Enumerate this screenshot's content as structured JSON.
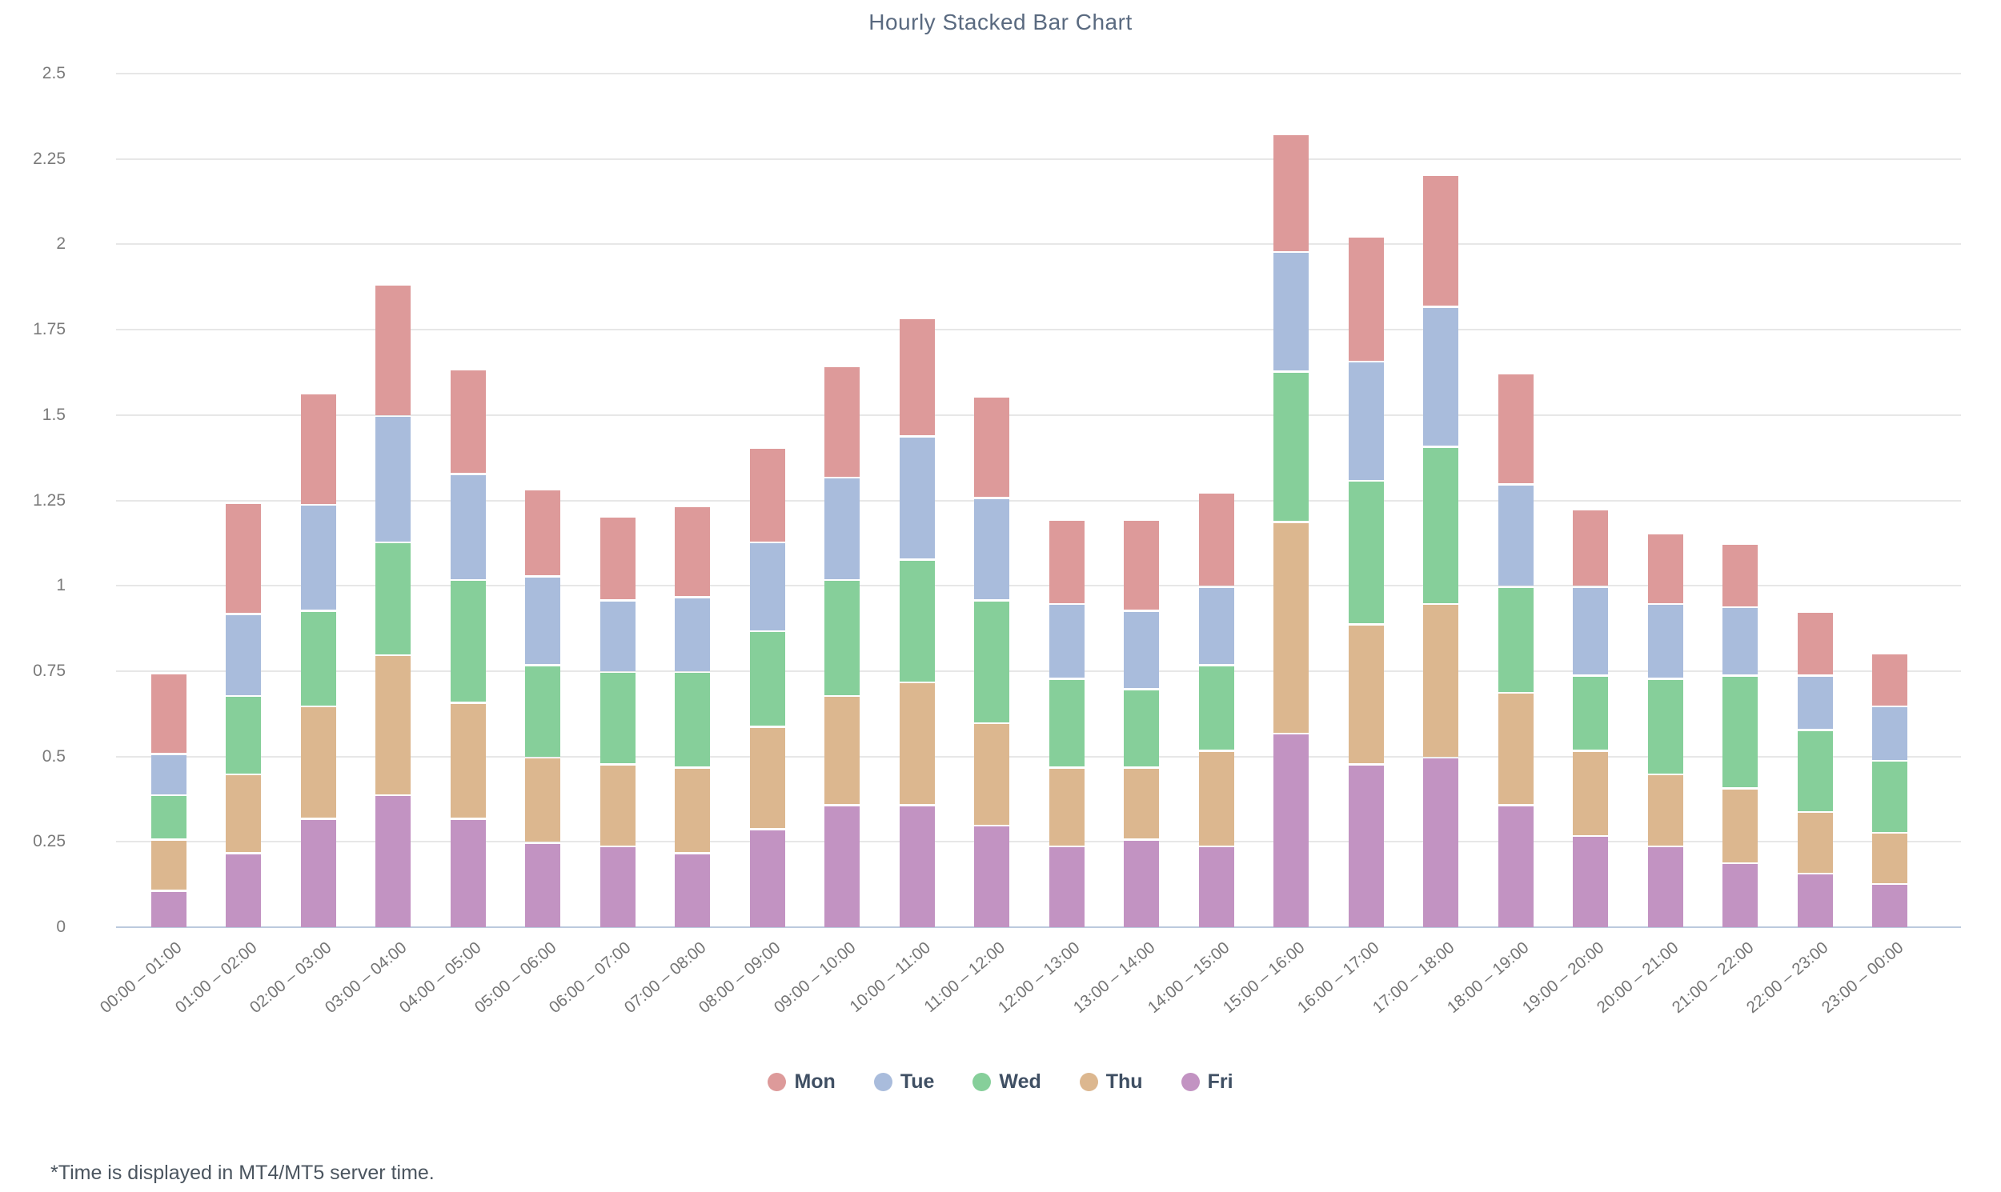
{
  "title": "Hourly Stacked Bar Chart",
  "footnote": "*Time is displayed in MT4/MT5 server time.",
  "colors": {
    "background": "#ffffff",
    "gridline": "#e7e7e7",
    "axis_line": "#bccade",
    "title_text": "#5a6a80",
    "tick_text": "#7a7a7a",
    "legend_text": "#3f4f63",
    "segment_gap": "#ffffff"
  },
  "chart_data": {
    "type": "bar",
    "stacked": true,
    "title": "Hourly Stacked Bar Chart",
    "xlabel": "",
    "ylabel": "",
    "ylim": [
      0,
      2.5
    ],
    "y_tick_step": 0.25,
    "y_ticks": [
      "0",
      "0.25",
      "0.5",
      "0.75",
      "1",
      "1.25",
      "1.5",
      "1.75",
      "2",
      "2.25",
      "2.5"
    ],
    "grid": true,
    "legend_position": "bottom",
    "stack_order_bottom_to_top": [
      "Fri",
      "Thu",
      "Wed",
      "Tue",
      "Mon"
    ],
    "categories": [
      "00:00 – 01:00",
      "01:00 – 02:00",
      "02:00 – 03:00",
      "03:00 – 04:00",
      "04:00 – 05:00",
      "05:00 – 06:00",
      "06:00 – 07:00",
      "07:00 – 08:00",
      "08:00 – 09:00",
      "09:00 – 10:00",
      "10:00 – 11:00",
      "11:00 – 12:00",
      "12:00 – 13:00",
      "13:00 – 14:00",
      "14:00 – 15:00",
      "15:00 – 16:00",
      "16:00 – 17:00",
      "17:00 – 18:00",
      "18:00 – 19:00",
      "19:00 – 20:00",
      "20:00 – 21:00",
      "21:00 – 22:00",
      "22:00 – 23:00",
      "23:00 – 00:00"
    ],
    "series": [
      {
        "name": "Mon",
        "color": "#dd9a9a",
        "values": [
          0.23,
          0.32,
          0.32,
          0.38,
          0.3,
          0.25,
          0.24,
          0.26,
          0.27,
          0.32,
          0.34,
          0.29,
          0.24,
          0.26,
          0.27,
          0.34,
          0.36,
          0.38,
          0.32,
          0.22,
          0.2,
          0.18,
          0.18,
          0.15
        ]
      },
      {
        "name": "Tue",
        "color": "#a9bcdc",
        "values": [
          0.12,
          0.24,
          0.31,
          0.37,
          0.31,
          0.26,
          0.21,
          0.22,
          0.26,
          0.3,
          0.36,
          0.3,
          0.22,
          0.23,
          0.23,
          0.35,
          0.35,
          0.41,
          0.3,
          0.26,
          0.22,
          0.2,
          0.16,
          0.16
        ]
      },
      {
        "name": "Wed",
        "color": "#86cf9a",
        "values": [
          0.13,
          0.23,
          0.28,
          0.33,
          0.36,
          0.27,
          0.27,
          0.28,
          0.28,
          0.34,
          0.36,
          0.36,
          0.26,
          0.23,
          0.25,
          0.44,
          0.42,
          0.46,
          0.31,
          0.22,
          0.28,
          0.33,
          0.24,
          0.21
        ]
      },
      {
        "name": "Thu",
        "color": "#dcb78f",
        "values": [
          0.15,
          0.23,
          0.33,
          0.41,
          0.34,
          0.25,
          0.24,
          0.25,
          0.3,
          0.32,
          0.36,
          0.3,
          0.23,
          0.21,
          0.28,
          0.62,
          0.41,
          0.45,
          0.33,
          0.25,
          0.21,
          0.22,
          0.18,
          0.15
        ]
      },
      {
        "name": "Fri",
        "color": "#c293c2",
        "values": [
          0.11,
          0.22,
          0.32,
          0.39,
          0.32,
          0.25,
          0.24,
          0.22,
          0.29,
          0.36,
          0.36,
          0.3,
          0.24,
          0.26,
          0.24,
          0.57,
          0.48,
          0.5,
          0.36,
          0.27,
          0.24,
          0.19,
          0.16,
          0.13
        ]
      }
    ]
  }
}
